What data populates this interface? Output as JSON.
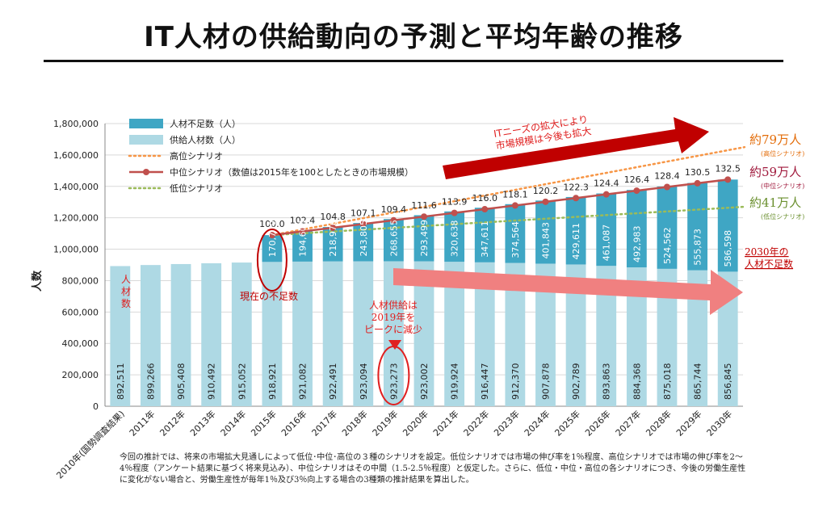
{
  "page": {
    "title": "IT人材の供給動向の予測と平均年齢の推移",
    "note_lines": [
      "今回の推計では、将来の市場拡大見通しによって低位･中位･高位の３種のシナリオを設定。低位シナリオでは市場の伸び率を1％程度、高位シナリオでは市場の伸び率を2～",
      "4％程度（アンケート結果に基づく将来見込み）、中位シナリオはその中間（1.5-2.5％程度）と仮定した。さらに、低位・中位・高位の各シナリオにつき、今後の労働生産性",
      "に変化がない場合と、労働生産性が毎年1％及び3％向上する場合の3種類の推計結果を算出した。"
    ]
  },
  "chart_data": {
    "type": "bar",
    "ylabel": "人数",
    "ylim": [
      0,
      1800000
    ],
    "y_ticks": [
      "0",
      "200,000",
      "400,000",
      "600,000",
      "800,000",
      "1,000,000",
      "1,200,000",
      "1,400,000",
      "1,600,000",
      "1,800,000"
    ],
    "categories": [
      "2010年(国勢調査結果)",
      "2011年",
      "2012年",
      "2013年",
      "2014年",
      "2015年",
      "2016年",
      "2017年",
      "2018年",
      "2019年",
      "2020年",
      "2021年",
      "2022年",
      "2023年",
      "2024年",
      "2025年",
      "2026年",
      "2027年",
      "2028年",
      "2029年",
      "2030年"
    ],
    "stacked": true,
    "series": [
      {
        "name": "供給人材数（人）",
        "color": "#aed9e4",
        "values": [
          892511,
          899266,
          905408,
          910492,
          915052,
          918921,
          921082,
          922491,
          923094,
          923273,
          923002,
          919924,
          916447,
          912370,
          907878,
          902789,
          893863,
          884368,
          875018,
          865744,
          856845
        ],
        "labels": [
          "892,511",
          "899,266",
          "905,408",
          "910,492",
          "915,052",
          "918,921",
          "921,082",
          "922,491",
          "923,094",
          "923,273",
          "923,002",
          "919,924",
          "916,447",
          "912,370",
          "907,878",
          "902,789",
          "893,863",
          "884,368",
          "875,018",
          "865,744",
          "856,845"
        ]
      },
      {
        "name": "人材不足数（人）",
        "color": "#3fa6c4",
        "values": [
          null,
          null,
          null,
          null,
          null,
          170700,
          194608,
          218976,
          243805,
          268655,
          293499,
          320638,
          347611,
          374564,
          401843,
          429611,
          461087,
          492983,
          524562,
          555873,
          586598
        ],
        "labels": [
          "",
          "",
          "",
          "",
          "",
          "170,700",
          "194,608",
          "218,976",
          "243,805",
          "268,655",
          "293,499",
          "320,638",
          "347,611",
          "374,564",
          "401,843",
          "429,611",
          "461,087",
          "492,983",
          "524,562",
          "555,873",
          "586,598"
        ]
      }
    ],
    "lines": [
      {
        "name": "中位シナリオ（数値は2015年を100としたときの市場規模）",
        "color": "#c0504d",
        "style": "solid-marker",
        "index_values": [
          100.0,
          102.4,
          104.8,
          107.1,
          109.4,
          111.6,
          113.9,
          116.0,
          118.1,
          120.2,
          122.3,
          124.4,
          126.4,
          128.4,
          130.5,
          132.5
        ],
        "index_labels": [
          "100.0",
          "102.4",
          "104.8",
          "107.1",
          "109.4",
          "111.6",
          "113.9",
          "116.0",
          "118.1",
          "120.2",
          "122.3",
          "124.4",
          "126.4",
          "128.4",
          "130.5",
          "132.5"
        ],
        "y_start": 1089621,
        "y_end": 1443443
      },
      {
        "name": "高位シナリオ",
        "color": "#f79646",
        "style": "dotted",
        "y_start": 1089621,
        "y_end": 1650000
      },
      {
        "name": "低位シナリオ",
        "color": "#9bbb59",
        "style": "dotted",
        "y_start": 1089621,
        "y_end": 1270000
      }
    ],
    "legend": {
      "position": "top-left",
      "items": [
        "人材不足数（人）",
        "供給人材数（人）",
        "高位シナリオ",
        "中位シナリオ（数値は2015年を100としたときの市場規模）",
        "低位シナリオ"
      ]
    },
    "annotations": {
      "market_arrow": "ITニーズの拡大により\n市場規模は今後も拡大",
      "high_total": "約79万人",
      "high_sub": "(高位シナリオ)",
      "mid_total": "約59万人",
      "mid_sub": "(中位シナリオ)",
      "low_total": "約41万人",
      "low_sub": "(低位シナリオ)",
      "shortage_2030": "2030年の\n人材不足数",
      "current_shortage": "現在の不足数",
      "supply_peak": "人材供給は\n2019年を\nピークに減少",
      "supply_label": "人\n材\n数",
      "colors": {
        "dark_red": "#c00000",
        "salmon": "#f08080",
        "red_text": "#e02020",
        "mid_text": "#a0193c",
        "low_text": "#6a8f2e",
        "high_text": "#e36c09"
      }
    }
  }
}
